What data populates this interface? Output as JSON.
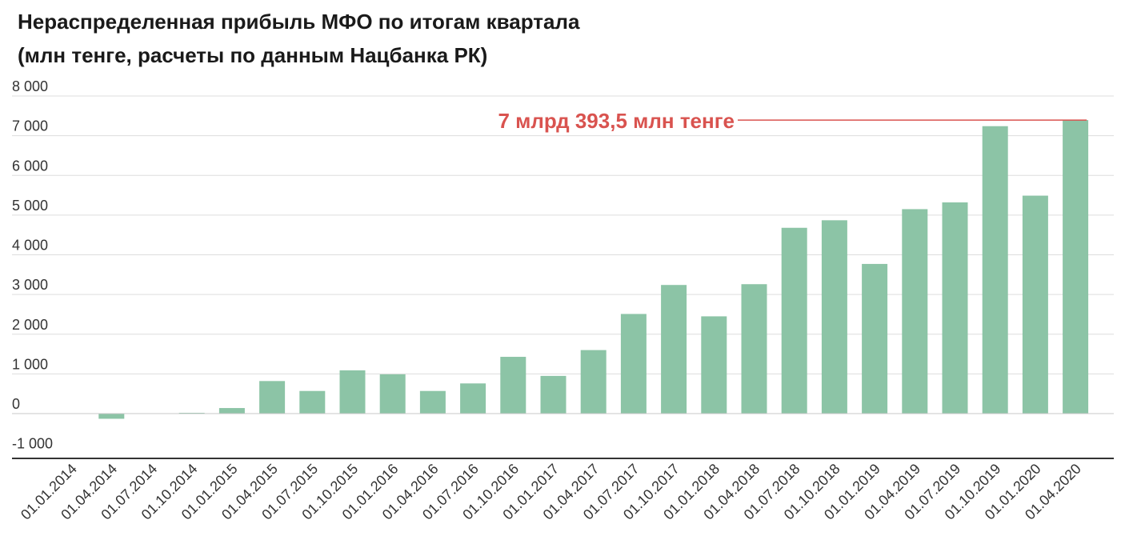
{
  "title": {
    "line1": "Нераспределенная прибыль МФО по итогам квартала",
    "line2": "(млн тенге, расчеты по данным Нацбанка РК)"
  },
  "colors": {
    "bar": "#8cc4a6",
    "annotation": "#d9534f",
    "grid": "#dddddd",
    "axis": "#333333"
  },
  "chart_data": {
    "type": "bar",
    "categories": [
      "01.01.2014",
      "01.04.2014",
      "01.07.2014",
      "01.10.2014",
      "01.01.2015",
      "01.04.2015",
      "01.07.2015",
      "01.10.2015",
      "01.01.2016",
      "01.04.2016",
      "01.07.2016",
      "01.10.2016",
      "01.01.2017",
      "01.04.2017",
      "01.07.2017",
      "01.10.2017",
      "01.01.2018",
      "01.04.2018",
      "01.07.2018",
      "01.10.2018",
      "01.01.2019",
      "01.04.2019",
      "01.07.2019",
      "01.10.2019",
      "01.01.2020",
      "01.04.2020"
    ],
    "values": [
      0,
      -130,
      0,
      20,
      140,
      820,
      570,
      1090,
      990,
      570,
      760,
      1430,
      950,
      1600,
      2510,
      3240,
      2450,
      3260,
      4680,
      4870,
      3770,
      5150,
      5320,
      7240,
      5490,
      7393.5
    ],
    "y_ticks": [
      -1000,
      0,
      1000,
      2000,
      3000,
      4000,
      5000,
      6000,
      7000,
      8000
    ],
    "y_tick_labels": [
      "-1 000",
      "0",
      "1 000",
      "2 000",
      "3 000",
      "4 000",
      "5 000",
      "6 000",
      "7 000",
      "8 000"
    ],
    "ylim": [
      -1000,
      8000
    ],
    "grid": true,
    "annotation": {
      "text": "7 млрд 393,5 млн тенге",
      "value": 7393.5
    }
  }
}
